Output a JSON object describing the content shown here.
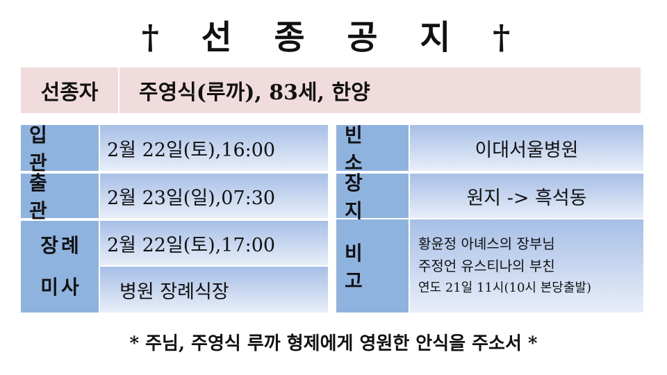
{
  "title": "† 선 종 공 지 †",
  "deceased": {
    "label": "선종자",
    "value": "주영식(루까), 83세, 한양"
  },
  "left_rows": [
    {
      "label": "입 관",
      "value": "2월 22일(토),16:00"
    },
    {
      "label": "출 관",
      "value": "2월 23일(일),07:30"
    },
    {
      "label": "장례",
      "label2": "미사",
      "value": "2월 22일(토),17:00",
      "value2": "병원 장례식장"
    }
  ],
  "right_rows": [
    {
      "label": "빈 소",
      "value": "이대서울병원"
    },
    {
      "label": "장 지",
      "value": "원지 -> 흑석동"
    },
    {
      "label": "비 고",
      "lines": [
        "황윤정 아녜스의 장부님",
        "주정언 유스티나의 부친",
        "연도 21일 11시(10시 본당출발)"
      ]
    }
  ],
  "footer": "* 주님, 주영식 루까 형제에게 영원한 안식을 주소서 *",
  "colors": {
    "pink": "#f1dcdd",
    "label_blue": "#8fb3df",
    "value_blue_top": "#a7bfe6",
    "value_blue_bottom": "#e8eef9"
  }
}
